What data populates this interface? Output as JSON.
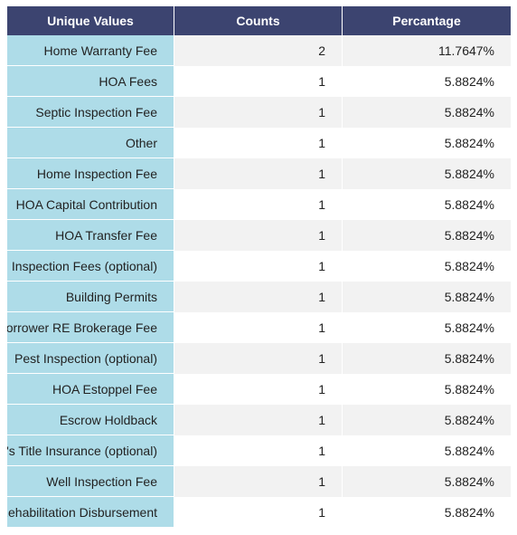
{
  "header": {
    "col1": "Unique Values",
    "col2": "Counts",
    "col3": "Percantage"
  },
  "chart_data": {
    "type": "table",
    "columns": [
      "Unique Values",
      "Counts",
      "Percantage"
    ],
    "rows": [
      [
        "Home Warranty Fee",
        "2",
        "11.7647%"
      ],
      [
        "HOA Fees",
        "1",
        "5.8824%"
      ],
      [
        "Septic Inspection Fee",
        "1",
        "5.8824%"
      ],
      [
        "Other",
        "1",
        "5.8824%"
      ],
      [
        "Home Inspection Fee",
        "1",
        "5.8824%"
      ],
      [
        "HOA Capital Contribution",
        "1",
        "5.8824%"
      ],
      [
        "HOA Transfer Fee",
        "1",
        "5.8824%"
      ],
      [
        "Inspection Fees (optional)",
        "1",
        "5.8824%"
      ],
      [
        "Building Permits",
        "1",
        "5.8824%"
      ],
      [
        "Borrower RE Brokerage Fee",
        "1",
        "5.8824%"
      ],
      [
        "Pest Inspection (optional)",
        "1",
        "5.8824%"
      ],
      [
        "HOA Estoppel Fee",
        "1",
        "5.8824%"
      ],
      [
        "Escrow Holdback",
        "1",
        "5.8824%"
      ],
      [
        "Owner's Title Insurance (optional)",
        "1",
        "5.8824%"
      ],
      [
        "Well Inspection Fee",
        "1",
        "5.8824%"
      ],
      [
        "Rehabilitation Disbursement",
        "1",
        "5.8824%"
      ]
    ]
  },
  "colors": {
    "header_bg": "#3c4470",
    "first_col_bg": "#aedce8",
    "stripe_bg": "#f2f2f2"
  }
}
